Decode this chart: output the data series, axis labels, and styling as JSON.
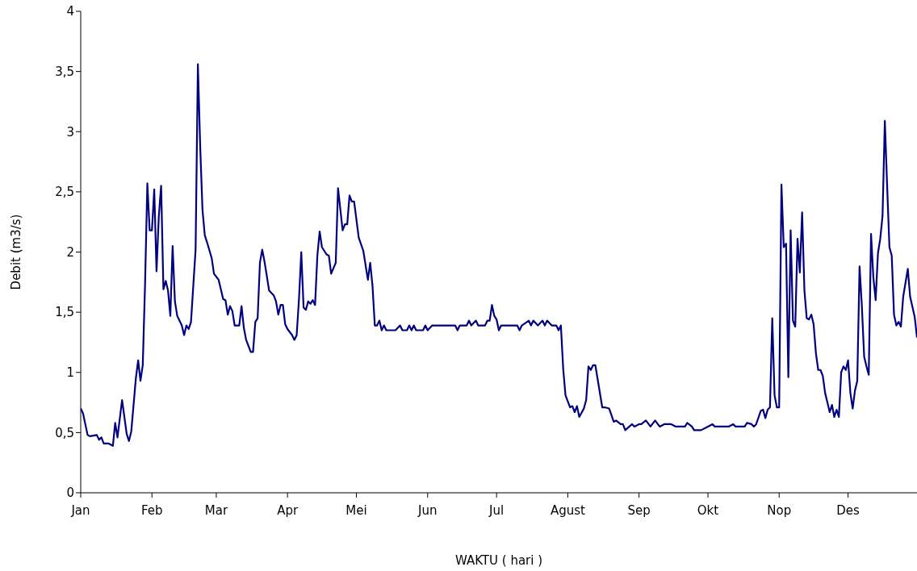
{
  "chart_data": {
    "type": "line",
    "xlabel": "WAKTU ( hari )",
    "ylabel": "Debit (m3/s)",
    "xlim": [
      "--01-01",
      "--12-31"
    ],
    "ylim": [
      0,
      4
    ],
    "xticks": [
      {
        "value": "--01-01",
        "label": "Jan"
      },
      {
        "value": "--02-01",
        "label": "Feb"
      },
      {
        "value": "--03-01",
        "label": "Mar"
      },
      {
        "value": "--04-01",
        "label": "Apr"
      },
      {
        "value": "--05-01",
        "label": "Mei"
      },
      {
        "value": "--06-01",
        "label": "Jun"
      },
      {
        "value": "--07-01",
        "label": "Jul"
      },
      {
        "value": "--08-01",
        "label": "Agust"
      },
      {
        "value": "--09-01",
        "label": "Sep"
      },
      {
        "value": "--10-01",
        "label": "Okt"
      },
      {
        "value": "--11-01",
        "label": "Nop"
      },
      {
        "value": "--12-01",
        "label": "Des"
      }
    ],
    "yticks": [
      0,
      {
        "value": 0.5,
        "label": "0,5"
      },
      1,
      {
        "value": 1.5,
        "label": "1,5"
      },
      2,
      {
        "value": 2.5,
        "label": "2,5"
      },
      3,
      {
        "value": 3.5,
        "label": "3,5"
      },
      4
    ],
    "grid": false,
    "legend": false,
    "marker": "none",
    "line_style": "solid",
    "series": [
      {
        "color": "#000080",
        "x": [
          "--01-01",
          "--01-02",
          "--01-04",
          "--01-05",
          "--01-08",
          "--01-09",
          "--01-10",
          "--01-11",
          "--01-13",
          "--01-15",
          "--01-16",
          "--01-17",
          "--01-19",
          "--01-21",
          "--01-22",
          "--01-23",
          "--01-25",
          "--01-26",
          "--01-27",
          "--01-28",
          "--01-29",
          "--01-30",
          "--01-31",
          "--02-01",
          "--02-02",
          "--02-03",
          "--02-04",
          "--02-05",
          "--02-06",
          "--02-07",
          "--02-08",
          "--02-09",
          "--02-10",
          "--02-11",
          "--02-12",
          "--02-14",
          "--02-15",
          "--02-16",
          "--02-17",
          "--02-18",
          "--02-20",
          "--02-21",
          "--02-22",
          "--02-23",
          "--02-24",
          "--02-25",
          "--02-27",
          "--02-28",
          "--03-02",
          "--03-04",
          "--03-05",
          "--03-06",
          "--03-07",
          "--03-08",
          "--03-09",
          "--03-11",
          "--03-12",
          "--03-13",
          "--03-14",
          "--03-16",
          "--03-17",
          "--03-18",
          "--03-19",
          "--03-20",
          "--03-21",
          "--03-22",
          "--03-24",
          "--03-26",
          "--03-27",
          "--03-28",
          "--03-29",
          "--03-30",
          "--03-31",
          "--04-01",
          "--04-03",
          "--04-04",
          "--04-05",
          "--04-06",
          "--04-07",
          "--04-08",
          "--04-09",
          "--04-10",
          "--04-11",
          "--04-12",
          "--04-13",
          "--04-14",
          "--04-15",
          "--04-16",
          "--04-18",
          "--04-19",
          "--04-20",
          "--04-22",
          "--04-23",
          "--04-25",
          "--04-26",
          "--04-27",
          "--04-28",
          "--04-29",
          "--04-30",
          "--05-02",
          "--05-04",
          "--05-06",
          "--05-07",
          "--05-08",
          "--05-09",
          "--05-10",
          "--05-11",
          "--05-12",
          "--05-13",
          "--05-14",
          "--05-18",
          "--05-20",
          "--05-21",
          "--05-23",
          "--05-24",
          "--05-25",
          "--05-26",
          "--05-27",
          "--05-30",
          "--05-31",
          "--06-01",
          "--06-03",
          "--06-13",
          "--06-14",
          "--06-15",
          "--06-18",
          "--06-19",
          "--06-20",
          "--06-22",
          "--06-23",
          "--06-26",
          "--06-27",
          "--06-28",
          "--06-29",
          "--06-30",
          "--07-01",
          "--07-02",
          "--07-03",
          "--07-10",
          "--07-11",
          "--07-12",
          "--07-15",
          "--07-16",
          "--07-17",
          "--07-19",
          "--07-21",
          "--07-22",
          "--07-23",
          "--07-25",
          "--07-27",
          "--07-28",
          "--07-29",
          "--07-30",
          "--07-31",
          "--08-02",
          "--08-03",
          "--08-04",
          "--08-05",
          "--08-06",
          "--08-08",
          "--08-09",
          "--08-10",
          "--08-11",
          "--08-12",
          "--08-13",
          "--08-16",
          "--08-17",
          "--08-19",
          "--08-21",
          "--08-22",
          "--08-24",
          "--08-25",
          "--08-26",
          "--08-29",
          "--08-30",
          "--09-01",
          "--09-02",
          "--09-04",
          "--09-06",
          "--09-08",
          "--09-10",
          "--09-12",
          "--09-15",
          "--09-17",
          "--09-21",
          "--09-22",
          "--09-24",
          "--09-25",
          "--09-28",
          "--10-01",
          "--10-03",
          "--10-04",
          "--10-10",
          "--10-12",
          "--10-13",
          "--10-17",
          "--10-18",
          "--10-20",
          "--10-21",
          "--10-22",
          "--10-24",
          "--10-25",
          "--10-26",
          "--10-27",
          "--10-28",
          "--10-29",
          "--10-30",
          "--10-31",
          "--11-01",
          "--11-02",
          "--11-03",
          "--11-04",
          "--11-05",
          "--11-06",
          "--11-07",
          "--11-08",
          "--11-09",
          "--11-10",
          "--11-11",
          "--11-12",
          "--11-13",
          "--11-14",
          "--11-15",
          "--11-16",
          "--11-17",
          "--11-18",
          "--11-19",
          "--11-20",
          "--11-21",
          "--11-23",
          "--11-24",
          "--11-25",
          "--11-26",
          "--11-27",
          "--11-28",
          "--11-29",
          "--11-30",
          "--12-01",
          "--12-02",
          "--12-03",
          "--12-04",
          "--12-05",
          "--12-06",
          "--12-07",
          "--12-08",
          "--12-09",
          "--12-10",
          "--12-11",
          "--12-12",
          "--12-13",
          "--12-14",
          "--12-15",
          "--12-16",
          "--12-17",
          "--12-18",
          "--12-19",
          "--12-20",
          "--12-21",
          "--12-22",
          "--12-23",
          "--12-24",
          "--12-25",
          "--12-27",
          "--12-28",
          "--12-30",
          "--12-31"
        ],
        "values": [
          0.7,
          0.66,
          0.48,
          0.47,
          0.48,
          0.44,
          0.46,
          0.41,
          0.41,
          0.39,
          0.58,
          0.46,
          0.77,
          0.49,
          0.43,
          0.51,
          0.95,
          1.1,
          0.93,
          1.06,
          1.73,
          2.57,
          2.18,
          2.18,
          2.52,
          1.84,
          2.3,
          2.55,
          1.69,
          1.76,
          1.68,
          1.47,
          2.05,
          1.59,
          1.47,
          1.39,
          1.31,
          1.39,
          1.36,
          1.42,
          2.02,
          3.56,
          2.88,
          2.35,
          2.14,
          2.08,
          1.95,
          1.82,
          1.77,
          1.61,
          1.6,
          1.48,
          1.55,
          1.51,
          1.39,
          1.39,
          1.55,
          1.37,
          1.27,
          1.17,
          1.17,
          1.42,
          1.45,
          1.91,
          2.02,
          1.92,
          1.68,
          1.64,
          1.59,
          1.48,
          1.56,
          1.56,
          1.4,
          1.36,
          1.31,
          1.27,
          1.31,
          1.61,
          2,
          1.54,
          1.52,
          1.59,
          1.57,
          1.6,
          1.56,
          1.97,
          2.17,
          2.04,
          1.98,
          1.97,
          1.82,
          1.91,
          2.53,
          2.18,
          2.23,
          2.23,
          2.47,
          2.42,
          2.42,
          2.12,
          2.01,
          1.77,
          1.91,
          1.72,
          1.39,
          1.39,
          1.43,
          1.35,
          1.39,
          1.35,
          1.35,
          1.39,
          1.35,
          1.35,
          1.39,
          1.35,
          1.39,
          1.35,
          1.35,
          1.39,
          1.35,
          1.39,
          1.39,
          1.35,
          1.39,
          1.39,
          1.43,
          1.39,
          1.43,
          1.39,
          1.39,
          1.43,
          1.43,
          1.56,
          1.47,
          1.44,
          1.35,
          1.39,
          1.39,
          1.35,
          1.39,
          1.43,
          1.39,
          1.43,
          1.39,
          1.43,
          1.39,
          1.43,
          1.39,
          1.39,
          1.35,
          1.39,
          1.03,
          0.81,
          0.71,
          0.72,
          0.67,
          0.72,
          0.63,
          0.7,
          0.77,
          1.05,
          1.02,
          1.06,
          1.06,
          0.71,
          0.71,
          0.7,
          0.59,
          0.6,
          0.57,
          0.57,
          0.52,
          0.57,
          0.55,
          0.57,
          0.57,
          0.6,
          0.55,
          0.6,
          0.55,
          0.57,
          0.57,
          0.55,
          0.55,
          0.58,
          0.55,
          0.52,
          0.52,
          0.55,
          0.57,
          0.55,
          0.55,
          0.57,
          0.55,
          0.55,
          0.58,
          0.57,
          0.55,
          0.57,
          0.68,
          0.69,
          0.62,
          0.69,
          0.71,
          1.45,
          0.81,
          0.71,
          0.71,
          2.56,
          2.04,
          2.07,
          0.96,
          2.18,
          1.43,
          1.38,
          2.11,
          1.83,
          2.33,
          1.68,
          1.45,
          1.44,
          1.48,
          1.4,
          1.16,
          1.02,
          1.02,
          0.97,
          0.83,
          0.67,
          0.73,
          0.63,
          0.69,
          0.63,
          1,
          1.05,
          1.02,
          1.1,
          0.83,
          0.7,
          0.85,
          0.93,
          1.88,
          1.55,
          1.13,
          1.05,
          0.98,
          2.15,
          1.79,
          1.6,
          1.99,
          2.11,
          2.3,
          3.09,
          2.55,
          2.04,
          1.97,
          1.48,
          1.39,
          1.42,
          1.38,
          1.63,
          1.86,
          1.63,
          1.46,
          1.29
        ]
      }
    ]
  }
}
